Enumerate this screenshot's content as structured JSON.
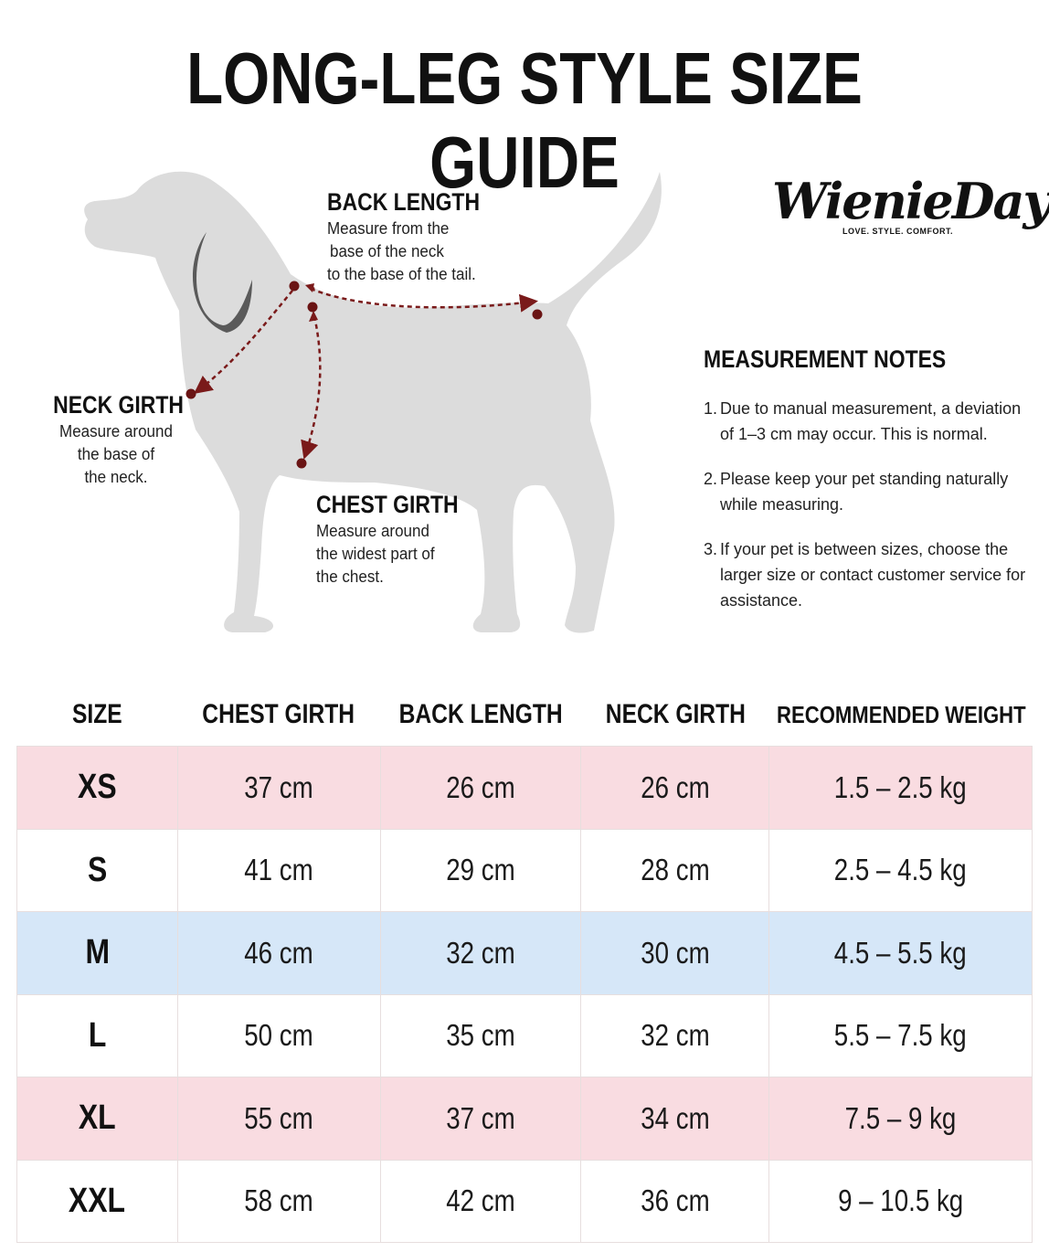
{
  "title": "LONG-LEG STYLE SIZE GUIDE",
  "diagram": {
    "back_length": {
      "heading": "BACK LENGTH",
      "lines": [
        "Measure from the",
        "base of the neck",
        "to the base of the tail."
      ]
    },
    "neck_girth": {
      "heading": "NECK GIRTH",
      "lines": [
        "Measure around",
        "the base of",
        "the neck."
      ]
    },
    "chest_girth": {
      "heading": "CHEST GIRTH",
      "lines": [
        "Measure around",
        "the widest part of",
        "the chest."
      ]
    },
    "colors": {
      "dog": "#dcdcdc",
      "marker": "#7a1a1a",
      "collar": "#5a5a5a"
    }
  },
  "logo": {
    "wordmark": "WienieDay",
    "tagline": "LOVE. STYLE. COMFORT."
  },
  "notes": {
    "title": "MEASUREMENT NOTES",
    "items": [
      {
        "num": "1.",
        "text": "Due to manual measurement, a deviation of 1–3 cm may occur. This is normal."
      },
      {
        "num": "2.",
        "text": "Please keep your pet standing naturally while measuring."
      },
      {
        "num": "3.",
        "text": "If your pet is between sizes, choose the larger size or contact customer service for assistance."
      }
    ]
  },
  "table": {
    "headers": [
      "SIZE",
      "CHEST GIRTH",
      "BACK LENGTH",
      "NECK GIRTH",
      "RECOMMENDED WEIGHT"
    ],
    "rows": [
      {
        "size": "XS",
        "chest": "37 cm",
        "back": "26 cm",
        "neck": "26 cm",
        "weight": "1.5 – 2.5 kg",
        "color": "pink"
      },
      {
        "size": "S",
        "chest": "41 cm",
        "back": "29 cm",
        "neck": "28 cm",
        "weight": "2.5 – 4.5 kg",
        "color": "white"
      },
      {
        "size": "M",
        "chest": "46 cm",
        "back": "32 cm",
        "neck": "30 cm",
        "weight": "4.5 – 5.5 kg",
        "color": "blue"
      },
      {
        "size": "L",
        "chest": "50 cm",
        "back": "35 cm",
        "neck": "32 cm",
        "weight": "5.5 – 7.5 kg",
        "color": "white"
      },
      {
        "size": "XL",
        "chest": "55 cm",
        "back": "37 cm",
        "neck": "34 cm",
        "weight": "7.5 – 9 kg",
        "color": "pink"
      },
      {
        "size": "XXL",
        "chest": "58 cm",
        "back": "42 cm",
        "neck": "36 cm",
        "weight": "9 – 10.5 kg",
        "color": "white"
      }
    ]
  }
}
